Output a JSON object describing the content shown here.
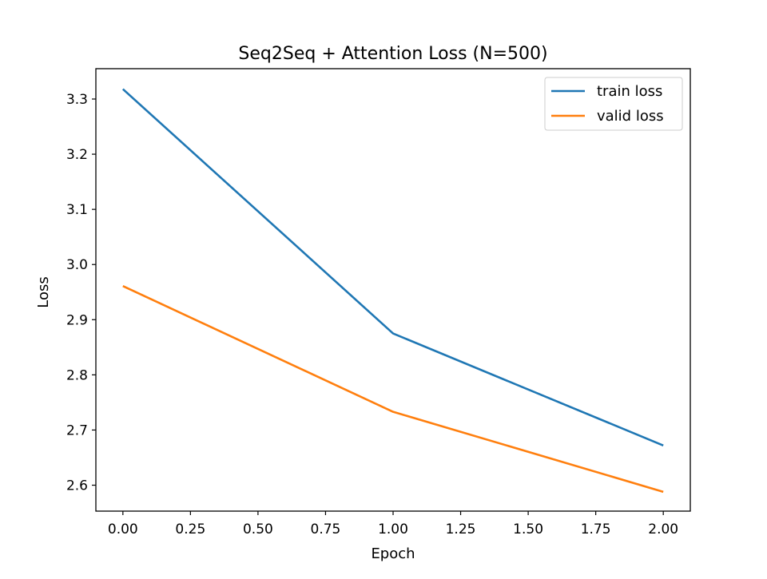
{
  "chart_data": {
    "type": "line",
    "title": "Seq2Seq + Attention Loss (N=500)",
    "xlabel": "Epoch",
    "ylabel": "Loss",
    "xlim": [
      -0.1,
      2.1
    ],
    "ylim": [
      2.553,
      3.355
    ],
    "xticks": [
      0.0,
      0.25,
      0.5,
      0.75,
      1.0,
      1.25,
      1.5,
      1.75,
      2.0
    ],
    "xtick_labels": [
      "0.00",
      "0.25",
      "0.50",
      "0.75",
      "1.00",
      "1.25",
      "1.50",
      "1.75",
      "2.00"
    ],
    "yticks": [
      2.6,
      2.7,
      2.8,
      2.9,
      3.0,
      3.1,
      3.2,
      3.3
    ],
    "ytick_labels": [
      "2.6",
      "2.7",
      "2.8",
      "2.9",
      "3.0",
      "3.1",
      "3.2",
      "3.3"
    ],
    "x": [
      0,
      1,
      2
    ],
    "series": [
      {
        "name": "train loss",
        "color": "#1f77b4",
        "values": [
          3.318,
          2.875,
          2.672
        ]
      },
      {
        "name": "valid loss",
        "color": "#ff7f0e",
        "values": [
          2.961,
          2.733,
          2.588
        ]
      }
    ],
    "legend": "top-right",
    "grid": false
  }
}
